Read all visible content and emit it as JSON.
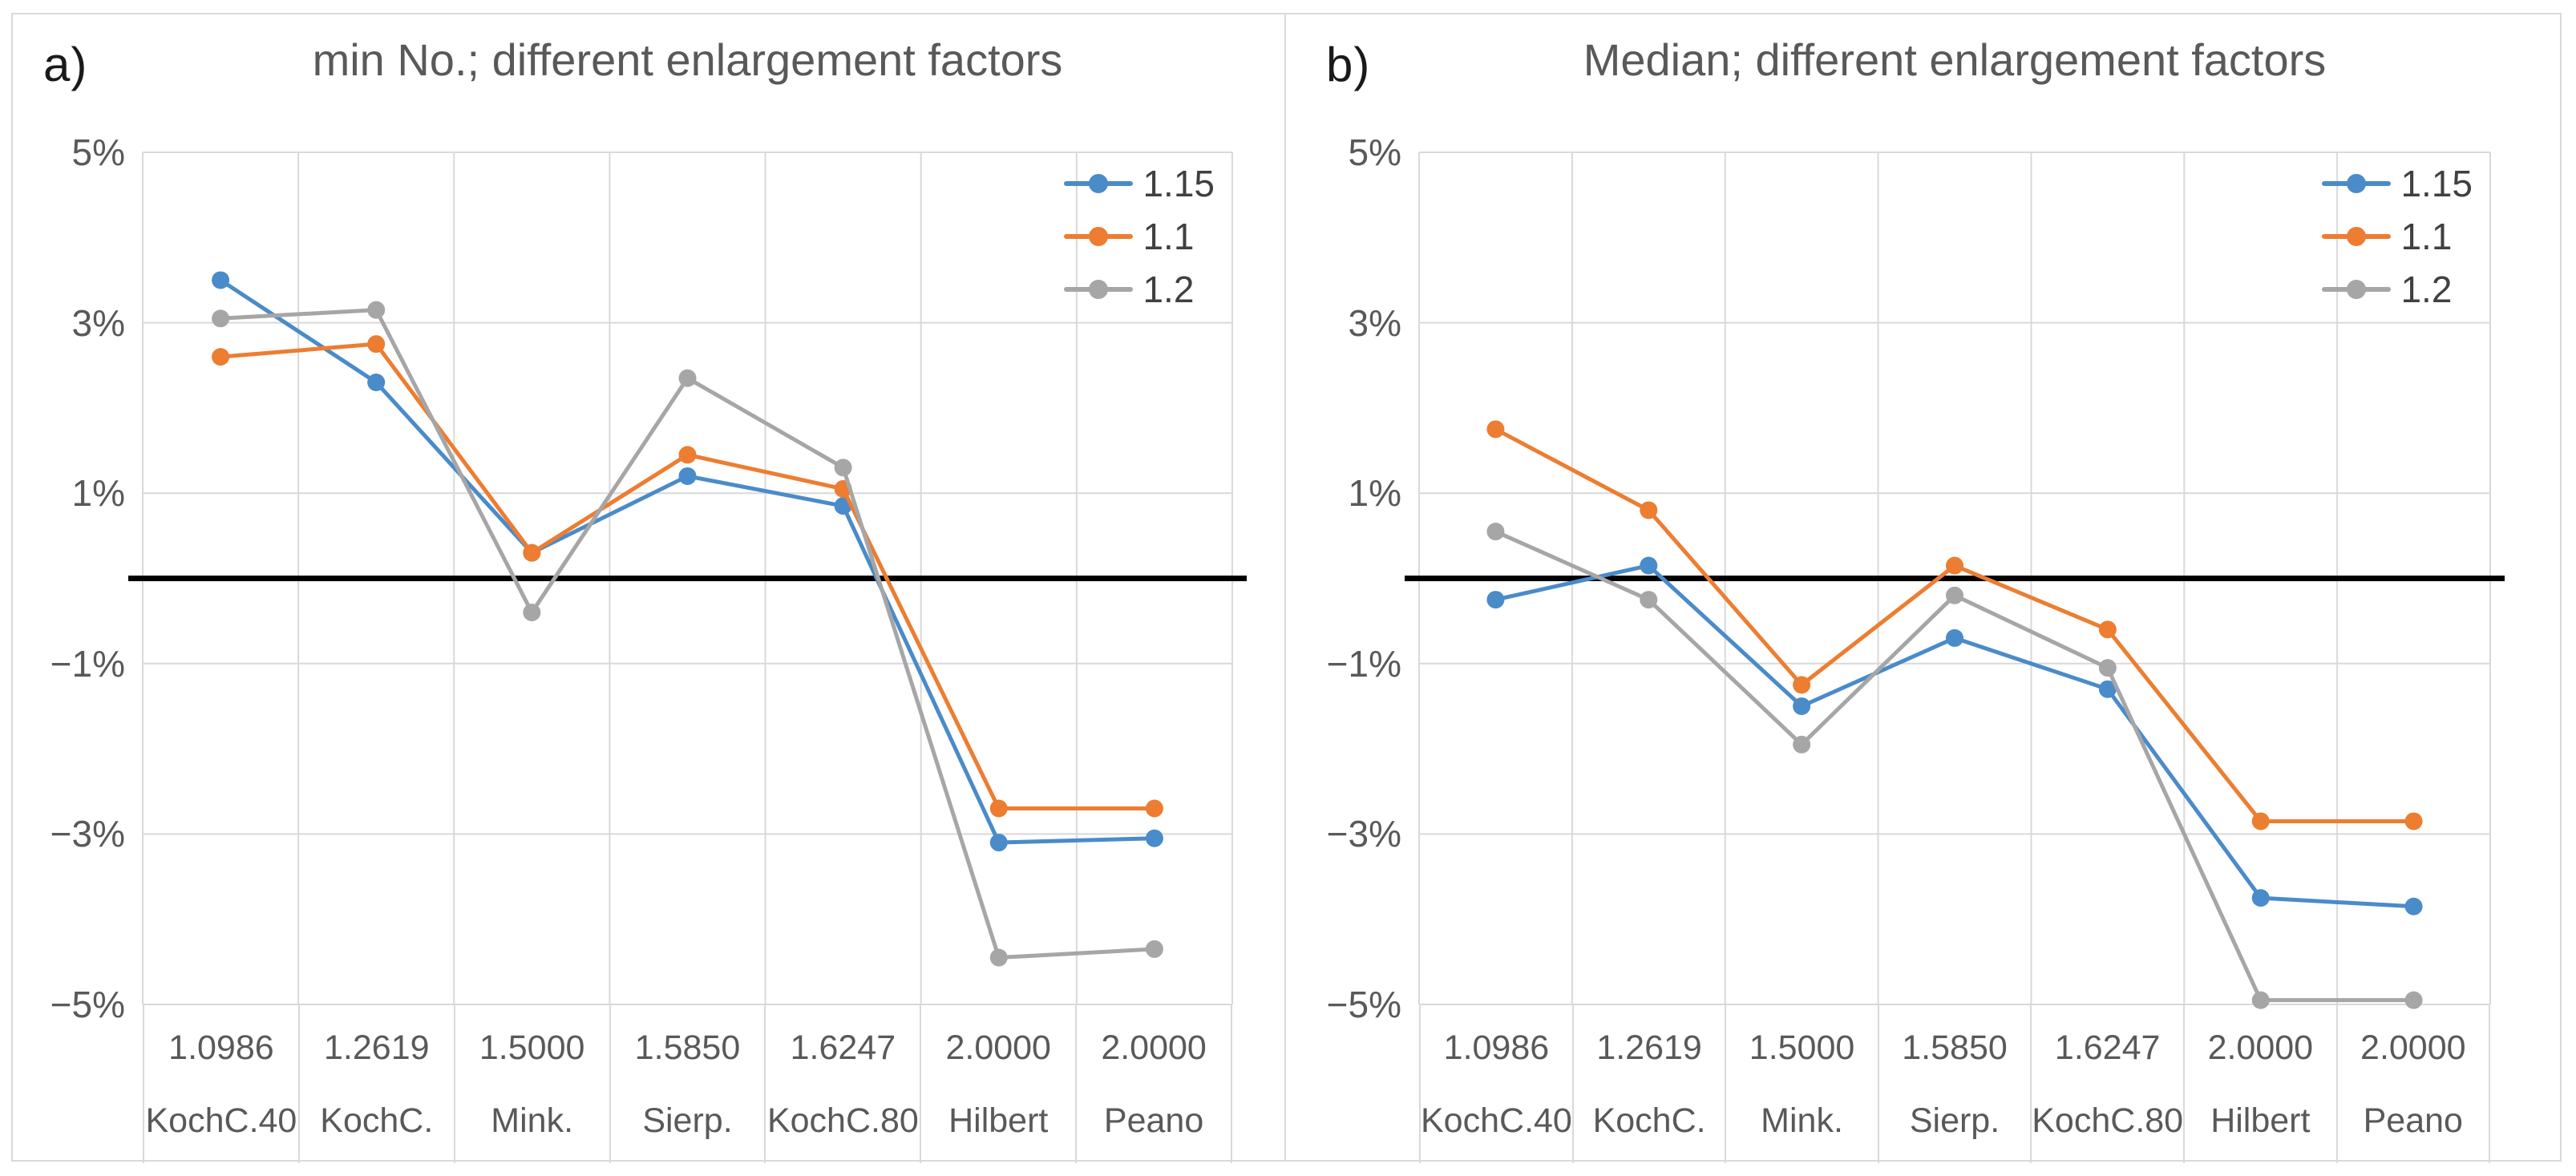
{
  "colors": {
    "blue": "#4A8BC9",
    "orange": "#ED7D31",
    "gray": "#A6A6A6",
    "zero_line": "#000000",
    "gridline": "#d9d9d9",
    "title_text": "#595959",
    "axis_text": "#595959",
    "legend_text": "#404040",
    "panel_border": "#d9d9d9"
  },
  "chart_data": [
    {
      "type": "line",
      "panel_letter": "a)",
      "title": "min No.; different enlargement factors",
      "categories_factor": [
        "1.0986",
        "1.2619",
        "1.5000",
        "1.5850",
        "1.6247",
        "2.0000",
        "2.0000"
      ],
      "categories_name": [
        "KochC.40",
        "KochC.",
        "Mink.",
        "Sierp.",
        "KochC.80",
        "Hilbert",
        "Peano"
      ],
      "series": [
        {
          "name": "1.15",
          "color_key": "blue",
          "values": [
            3.5,
            2.3,
            0.3,
            1.2,
            0.85,
            -3.1,
            -3.05
          ]
        },
        {
          "name": "1.1",
          "color_key": "orange",
          "values": [
            2.6,
            2.75,
            0.3,
            1.45,
            1.05,
            -2.7,
            -2.7
          ]
        },
        {
          "name": "1.2",
          "color_key": "gray",
          "values": [
            3.05,
            3.15,
            -0.4,
            2.35,
            1.3,
            -4.45,
            -4.35
          ]
        }
      ],
      "unit": "%",
      "ylim": [
        -5,
        5
      ],
      "y_ticks": [
        5,
        3,
        1,
        -1,
        -3,
        -5
      ],
      "y_tick_labels": [
        "5%",
        "3%",
        "1%",
        "−1%",
        "−3%",
        "−5%"
      ],
      "zero_line": true,
      "grid": true,
      "legend_position": "top-right",
      "legend_labels": [
        "1.15",
        "1.1",
        "1.2"
      ]
    },
    {
      "type": "line",
      "panel_letter": "b)",
      "title": "Median; different enlargement factors",
      "categories_factor": [
        "1.0986",
        "1.2619",
        "1.5000",
        "1.5850",
        "1.6247",
        "2.0000",
        "2.0000"
      ],
      "categories_name": [
        "KochC.40",
        "KochC.",
        "Mink.",
        "Sierp.",
        "KochC.80",
        "Hilbert",
        "Peano"
      ],
      "series": [
        {
          "name": "1.15",
          "color_key": "blue",
          "values": [
            -0.25,
            0.15,
            -1.5,
            -0.7,
            -1.3,
            -3.75,
            -3.85
          ]
        },
        {
          "name": "1.1",
          "color_key": "orange",
          "values": [
            1.75,
            0.8,
            -1.25,
            0.15,
            -0.6,
            -2.85,
            -2.85
          ]
        },
        {
          "name": "1.2",
          "color_key": "gray",
          "values": [
            0.55,
            -0.25,
            -1.95,
            -0.2,
            -1.05,
            -4.95,
            -4.95
          ]
        }
      ],
      "unit": "%",
      "ylim": [
        -5,
        5
      ],
      "y_ticks": [
        5,
        3,
        1,
        -1,
        -3,
        -5
      ],
      "y_tick_labels": [
        "5%",
        "3%",
        "1%",
        "−1%",
        "−3%",
        "−5%"
      ],
      "zero_line": true,
      "grid": true,
      "legend_position": "top-right",
      "legend_labels": [
        "1.15",
        "1.1",
        "1.2"
      ]
    }
  ]
}
